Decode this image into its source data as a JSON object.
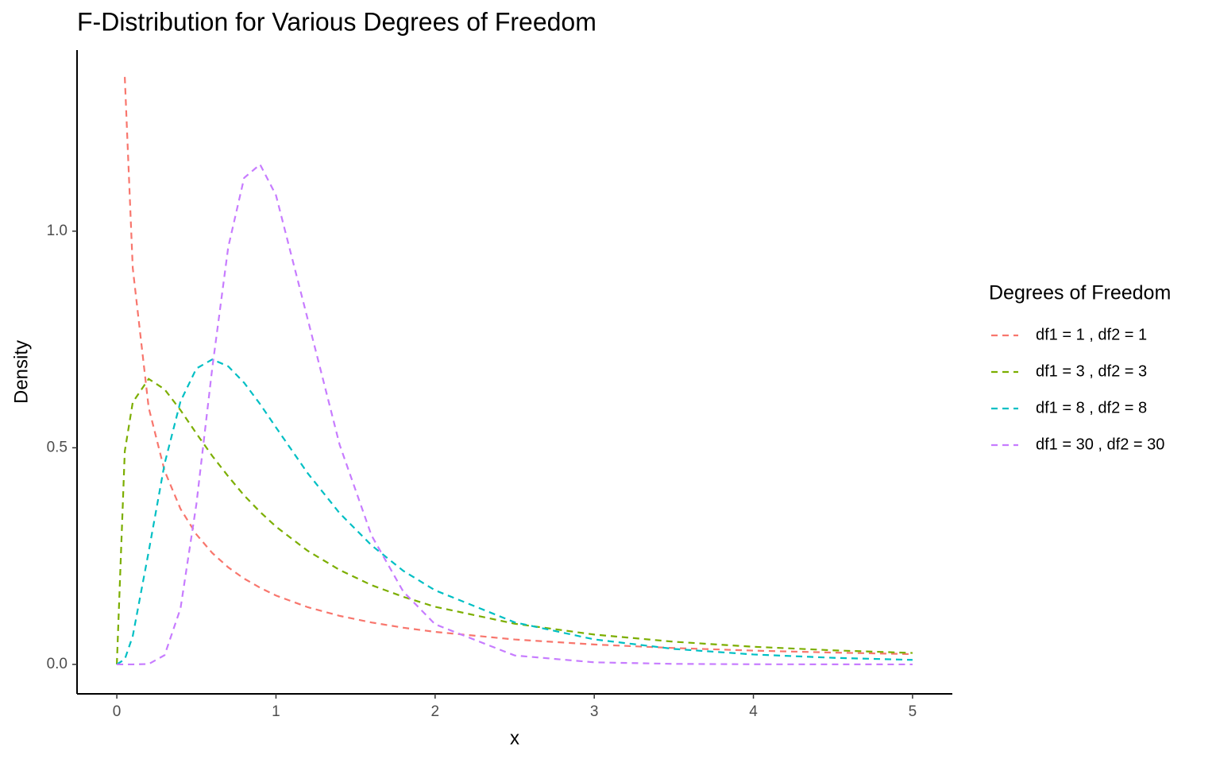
{
  "chart_data": {
    "type": "line",
    "title": "F-Distribution for Various Degrees of Freedom",
    "xlabel": "x",
    "ylabel": "Density",
    "legend_title": "Degrees of Freedom",
    "legend": "right",
    "linestyle": "dashed",
    "x": [
      0,
      0.05,
      0.1,
      0.2,
      0.3,
      0.4,
      0.5,
      0.6,
      0.7,
      0.8,
      0.9,
      1.0,
      1.2,
      1.4,
      1.6,
      1.8,
      2.0,
      2.5,
      3,
      3.5,
      4,
      4.5,
      5
    ],
    "series": [
      {
        "name": "df1 = 1 , df2 = 1",
        "color": "#F8766D",
        "values": [
          null,
          1.356,
          0.915,
          0.593,
          0.447,
          0.359,
          0.3,
          0.257,
          0.224,
          0.198,
          0.177,
          0.159,
          0.132,
          0.112,
          0.0968,
          0.0847,
          0.075,
          0.0575,
          0.0459,
          0.0378,
          0.0318,
          0.0273,
          0.0237
        ]
      },
      {
        "name": "df1 = 3 , df2 = 3",
        "color": "#7CAE00",
        "values": [
          0,
          0.492,
          0.605,
          0.659,
          0.635,
          0.587,
          0.533,
          0.481,
          0.434,
          0.39,
          0.352,
          0.318,
          0.262,
          0.218,
          0.183,
          0.156,
          0.133,
          0.0939,
          0.0689,
          0.0523,
          0.0407,
          0.0325,
          0.0264
        ]
      },
      {
        "name": "df1 = 8 , df2 = 8",
        "color": "#00BFC4",
        "values": [
          0,
          0.0118,
          0.0653,
          0.26,
          0.463,
          0.607,
          0.683,
          0.704,
          0.688,
          0.65,
          0.601,
          0.547,
          0.441,
          0.349,
          0.275,
          0.216,
          0.171,
          0.0971,
          0.0577,
          0.0357,
          0.0229,
          0.0152,
          0.0104
        ]
      },
      {
        "name": "df1 = 30 , df2 = 30",
        "color": "#C77CFF",
        "values": [
          0,
          0,
          0,
          0.0008,
          0.0212,
          0.129,
          0.37,
          0.685,
          0.963,
          1.123,
          1.154,
          1.083,
          0.796,
          0.507,
          0.298,
          0.168,
          0.0926,
          0.0206,
          0.0048,
          0.0012,
          0.0003,
          0.0001,
          0
        ]
      }
    ],
    "xlim": [
      -0.25,
      5.25
    ],
    "xticks": [
      0,
      1,
      2,
      3,
      4,
      5
    ],
    "ylim": [
      -0.068,
      1.418
    ],
    "yticks": [
      {
        "value": 0,
        "label": "0.0"
      },
      {
        "value": 0.5,
        "label": "0.5"
      },
      {
        "value": 1,
        "label": "1.0"
      }
    ],
    "grid": false
  }
}
